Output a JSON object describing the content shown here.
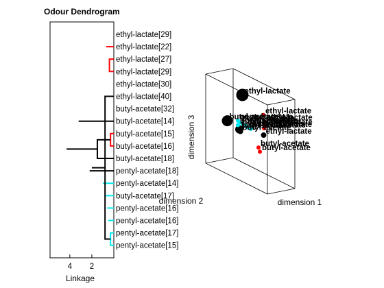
{
  "chart_data": [
    {
      "type": "dendrogram",
      "title": "Odour Dendrogram",
      "xlabel": "Linkage",
      "x_reversed": true,
      "xlim": [
        5.8,
        0
      ],
      "xticks": [
        4,
        2
      ],
      "leaves": [
        "ethyl-lactate[29]",
        "ethyl-lactate[22]",
        "ethyl-lactate[27]",
        "ethyl-lactate[29]",
        "ethyl-lactate[30]",
        "ethyl-lactate[40]",
        "butyl-acetate[32]",
        "butyl-acetate[14]",
        "butyl-acetate[15]",
        "butyl-acetate[16]",
        "butyl-acetate[18]",
        "pentyl-acetate[18]",
        "pentyl-acetate[14]",
        "butyl-acetate[17]",
        "pentyl-acetate[16]",
        "pentyl-acetate[16]",
        "pentyl-acetate[17]",
        "pentyl-acetate[15]"
      ],
      "merges": [
        {
          "a": 2,
          "b": 3,
          "h": 0.4,
          "c": "red"
        },
        {
          "a": 19,
          "b": 4,
          "h": 0.6,
          "c": "red"
        },
        {
          "a": 1,
          "b": 20,
          "h": 0.7,
          "c": "red"
        },
        {
          "a": 16,
          "b": 17,
          "h": 0.3,
          "c": "cyan"
        },
        {
          "a": 15,
          "b": 22,
          "h": 0.5,
          "c": "cyan"
        },
        {
          "a": 14,
          "b": 23,
          "h": 0.6,
          "c": "cyan"
        },
        {
          "a": 13,
          "b": 24,
          "h": 0.8,
          "c": "cyan"
        },
        {
          "a": 12,
          "b": 25,
          "h": 1.0,
          "c": "cyan"
        },
        {
          "a": 8,
          "b": 9,
          "h": 0.3,
          "c": "red"
        },
        {
          "a": 21,
          "b": 5,
          "h": 0.8,
          "c": "black"
        },
        {
          "a": 28,
          "b": 0,
          "h": 2.1,
          "c": "black"
        },
        {
          "a": 29,
          "b": 6,
          "h": 2.8,
          "c": "black"
        },
        {
          "a": 10,
          "b": 26,
          "h": 1.5,
          "c": "black"
        },
        {
          "a": 27,
          "b": 31,
          "h": 2.0,
          "c": "black"
        },
        {
          "a": 11,
          "b": 32,
          "h": 2.2,
          "c": "black"
        },
        {
          "a": 7,
          "b": 33,
          "h": 3.2,
          "c": "black"
        },
        {
          "a": 30,
          "b": 34,
          "h": 4.3,
          "c": "black"
        }
      ]
    },
    {
      "type": "scatter3d",
      "xlabel": "dimension 1",
      "ylabel": "dimension 2",
      "zlabel": "dimension 3",
      "points": [
        {
          "label": "ethyl-lactate",
          "color": "black",
          "x": 0.55,
          "y": 0.9,
          "z": 0.95,
          "r": 9
        },
        {
          "label": "ethyl-lactate",
          "color": "red",
          "x": 0.8,
          "y": 0.7,
          "z": 0.8,
          "r": 3
        },
        {
          "label": "ethyl-lactate",
          "color": "red",
          "x": 0.75,
          "y": 0.55,
          "z": 0.7,
          "r": 3
        },
        {
          "label": "ethyl-lactate",
          "color": "red",
          "x": 0.75,
          "y": 0.55,
          "z": 0.65,
          "r": 3
        },
        {
          "label": "ethyl-lactate",
          "color": "red",
          "x": 0.7,
          "y": 0.45,
          "z": 0.6,
          "r": 3
        },
        {
          "label": "ethyl-lactate",
          "color": "black",
          "x": 0.65,
          "y": 0.35,
          "z": 0.5,
          "r": 4
        },
        {
          "label": "butyl-acetate",
          "color": "black",
          "x": 0.25,
          "y": 0.3,
          "z": 0.4,
          "r": 4
        },
        {
          "label": "butyl-acetate",
          "color": "red",
          "x": 0.5,
          "y": 0.2,
          "z": 0.3,
          "r": 3
        },
        {
          "label": "butyl-acetate",
          "color": "red",
          "x": 0.5,
          "y": 0.15,
          "z": 0.25,
          "r": 3
        },
        {
          "label": "butyl-acetate",
          "color": "black",
          "x": 0.3,
          "y": 0.45,
          "z": 0.45,
          "r": 6
        },
        {
          "label": "butyl-acetate",
          "color": "black",
          "x": 0.15,
          "y": 0.55,
          "z": 0.5,
          "r": 8
        },
        {
          "label": "pentyl-acetate",
          "color": "cyan",
          "x": 0.3,
          "y": 0.5,
          "z": 0.55,
          "r": 3
        },
        {
          "label": "pentyl-acetate",
          "color": "cyan",
          "x": 0.35,
          "y": 0.55,
          "z": 0.55,
          "r": 3
        },
        {
          "label": "butyl-acetate",
          "color": "cyan",
          "x": 0.3,
          "y": 0.5,
          "z": 0.5,
          "r": 3
        },
        {
          "label": "pentyl-acetate",
          "color": "cyan",
          "x": 0.4,
          "y": 0.55,
          "z": 0.55,
          "r": 3
        },
        {
          "label": "pentyl-acetate",
          "color": "cyan",
          "x": 0.45,
          "y": 0.55,
          "z": 0.55,
          "r": 3
        },
        {
          "label": "pentyl-acetate",
          "color": "cyan",
          "x": 0.5,
          "y": 0.6,
          "z": 0.55,
          "r": 3
        },
        {
          "label": "pentyl-acetate",
          "color": "cyan",
          "x": 0.55,
          "y": 0.6,
          "z": 0.55,
          "r": 3
        }
      ]
    }
  ],
  "colors": {
    "red": "#ff0000",
    "cyan": "#00e5ee",
    "black": "#000000",
    "label_red": "#e8322c"
  }
}
